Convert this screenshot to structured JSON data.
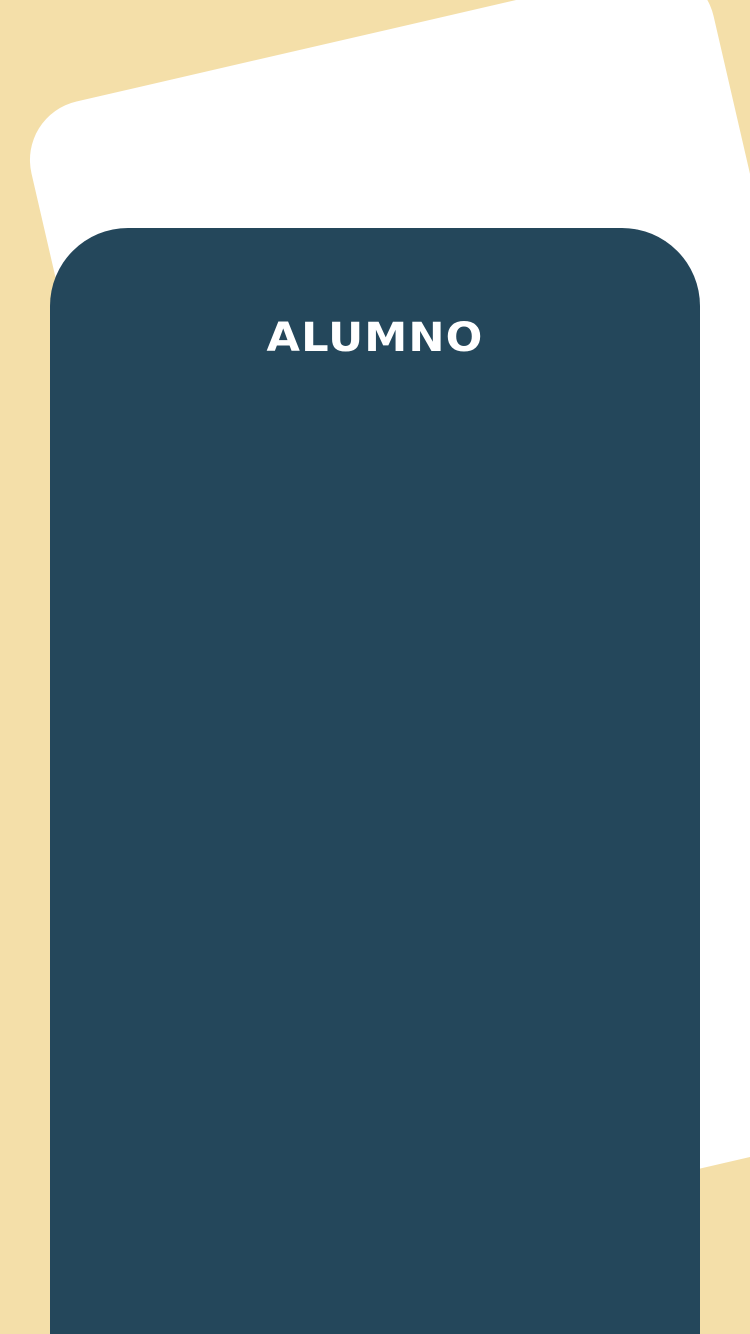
{
  "main_card": {
    "title": "ALUMNO"
  },
  "colors": {
    "background": "#f4dfa9",
    "back_card": "#ffffff",
    "main_card": "#24475b",
    "title_text": "#ffffff"
  }
}
